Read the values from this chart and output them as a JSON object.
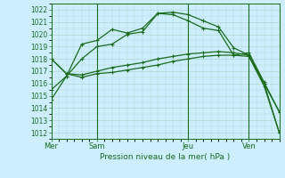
{
  "background_color": "#cceeff",
  "grid_color": "#aaddcc",
  "line_color": "#1a6b1a",
  "title": "Pression niveau de la mer( hPa )",
  "ylim": [
    1011.5,
    1022.5
  ],
  "yticks": [
    1012,
    1013,
    1014,
    1015,
    1016,
    1017,
    1018,
    1019,
    1020,
    1021,
    1022
  ],
  "xtick_labels": [
    "Mer",
    "Sam",
    "Jeu",
    "Ven"
  ],
  "xtick_positions": [
    0,
    3,
    9,
    13
  ],
  "total_points": 16,
  "lines": [
    {
      "x": [
        0,
        1,
        2,
        3,
        4,
        5,
        6,
        7,
        8,
        9,
        10,
        11,
        12,
        13,
        14,
        15
      ],
      "y": [
        1014.7,
        1016.6,
        1018.0,
        1019.0,
        1019.2,
        1020.0,
        1020.2,
        1021.7,
        1021.8,
        1021.6,
        1021.1,
        1020.6,
        1018.9,
        1018.3,
        1016.0,
        1012.0
      ]
    },
    {
      "x": [
        0,
        1,
        2,
        3,
        4,
        5,
        6,
        7,
        8,
        9,
        10,
        11,
        12,
        13,
        14,
        15
      ],
      "y": [
        1015.5,
        1016.6,
        1019.2,
        1019.5,
        1020.4,
        1020.1,
        1020.5,
        1021.7,
        1021.6,
        1021.1,
        1020.5,
        1020.3,
        1018.3,
        1018.5,
        1016.1,
        1013.7
      ]
    },
    {
      "x": [
        0,
        1,
        2,
        3,
        4,
        5,
        6,
        7,
        8,
        9,
        10,
        11,
        12,
        13,
        14,
        15
      ],
      "y": [
        1018.0,
        1016.8,
        1016.7,
        1017.0,
        1017.3,
        1017.5,
        1017.7,
        1018.0,
        1018.2,
        1018.4,
        1018.5,
        1018.6,
        1018.5,
        1018.3,
        1016.0,
        1013.7
      ]
    },
    {
      "x": [
        0,
        1,
        2,
        3,
        4,
        5,
        6,
        7,
        8,
        9,
        10,
        11,
        12,
        13,
        14,
        15
      ],
      "y": [
        1018.0,
        1016.8,
        1016.5,
        1016.8,
        1016.9,
        1017.1,
        1017.3,
        1017.5,
        1017.8,
        1018.0,
        1018.2,
        1018.3,
        1018.3,
        1018.2,
        1015.8,
        1012.0
      ]
    }
  ],
  "vlines": [
    3,
    9,
    13
  ],
  "grid_xspacing": 1,
  "grid_yspacing": 1
}
